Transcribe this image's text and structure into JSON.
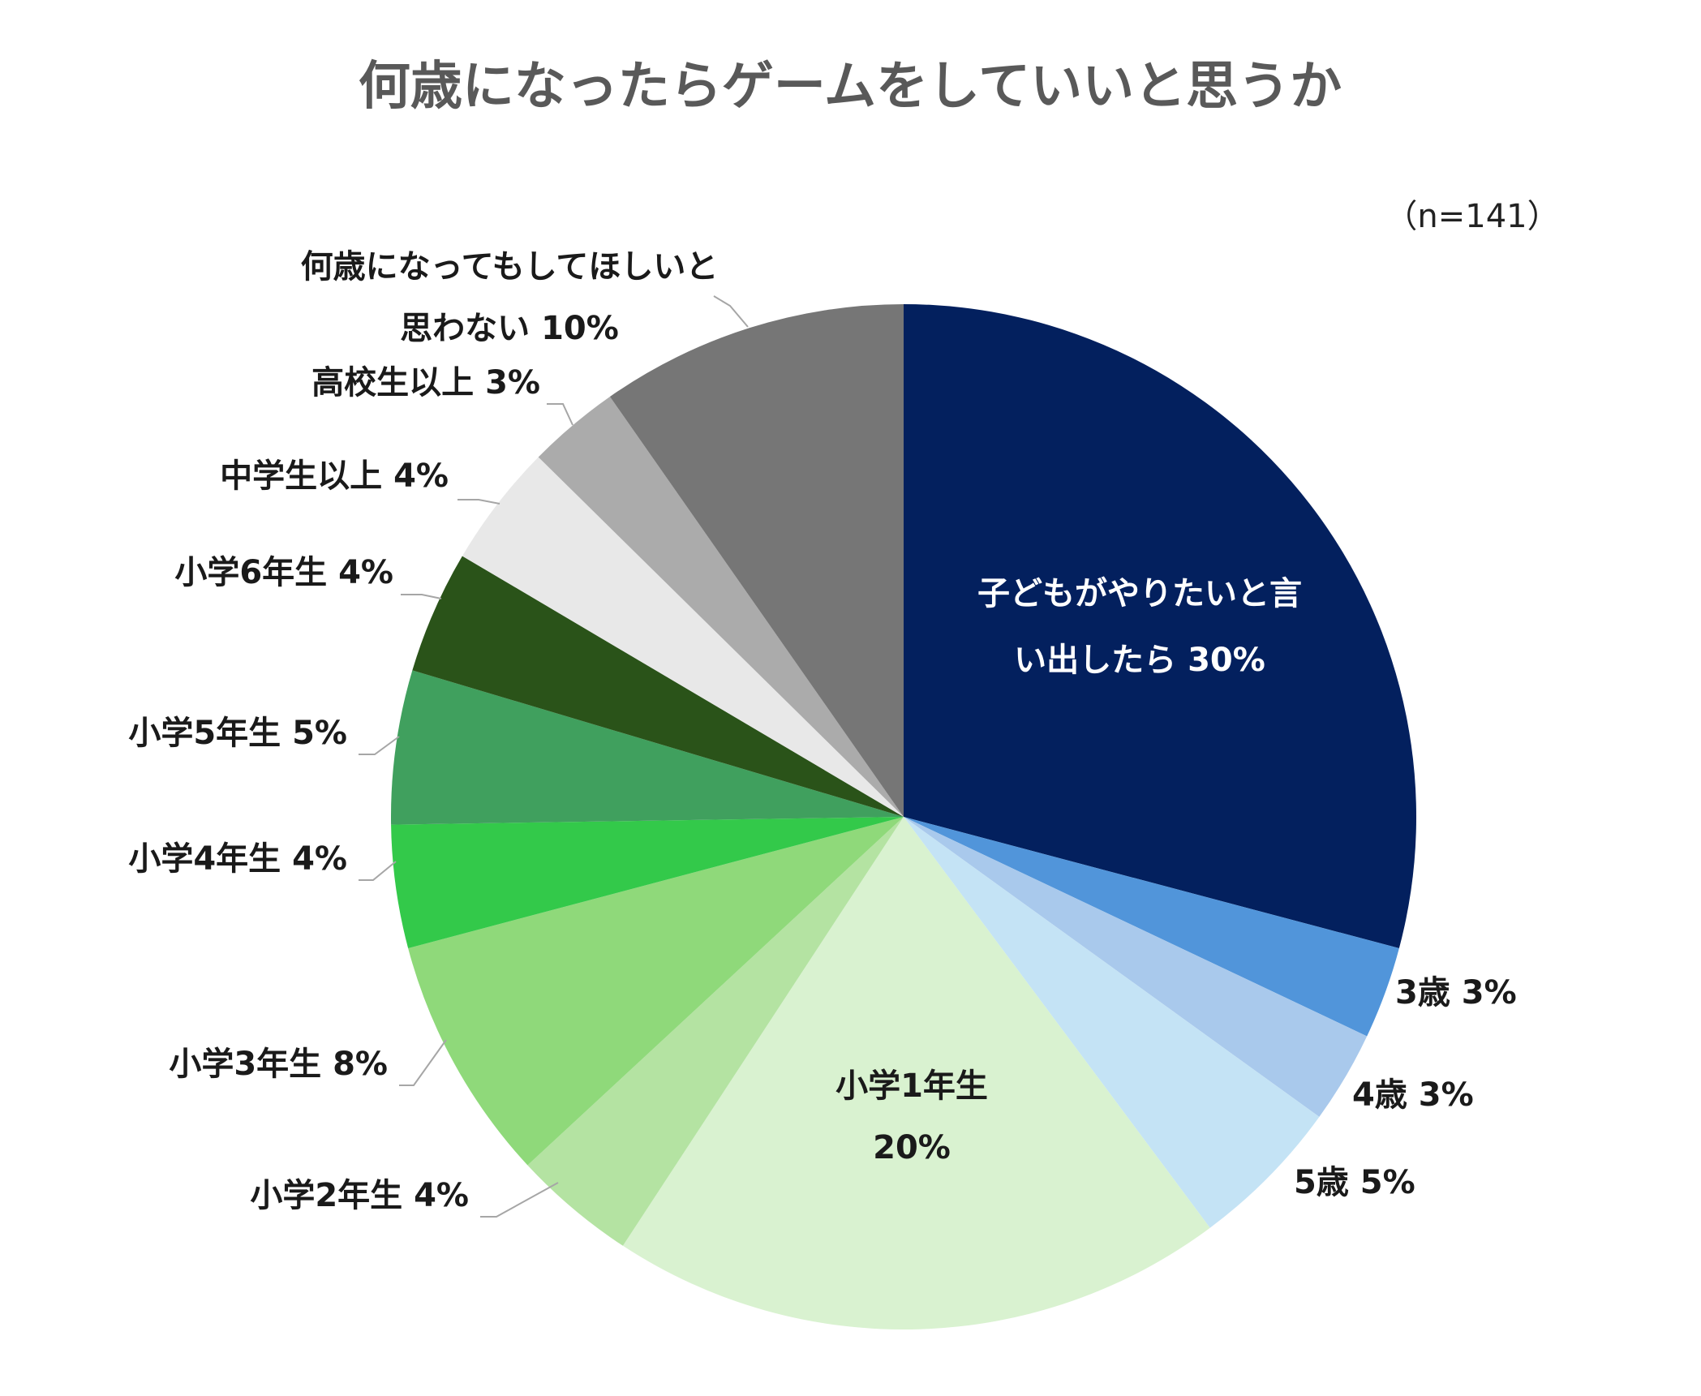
{
  "chart_data": {
    "type": "pie",
    "title": "何歳になったらゲームをしていいと思うか",
    "note": "（n=141）",
    "slices": [
      {
        "label_lines": [
          "子どもがやりたいと言",
          "い出したら 30%"
        ],
        "value": 30,
        "color": "#03205e",
        "label_color": "#ffffff"
      },
      {
        "label_lines": [
          "3歳 3%"
        ],
        "value": 3,
        "color": "#5195da",
        "label_color": "#1a1a1a"
      },
      {
        "label_lines": [
          "4歳 3%"
        ],
        "value": 3,
        "color": "#a9c9ec",
        "label_color": "#1a1a1a"
      },
      {
        "label_lines": [
          "5歳 5%"
        ],
        "value": 5,
        "color": "#c4e3f5",
        "label_color": "#1a1a1a"
      },
      {
        "label_lines": [
          "小学1年生",
          "20%"
        ],
        "value": 20,
        "color": "#d9f2d0",
        "label_color": "#1a1a1a"
      },
      {
        "label_lines": [
          "小学2年生 4%"
        ],
        "value": 4,
        "color": "#b4e3a2",
        "label_color": "#1a1a1a"
      },
      {
        "label_lines": [
          "小学3年生 8%"
        ],
        "value": 8,
        "color": "#8fd97a",
        "label_color": "#1a1a1a"
      },
      {
        "label_lines": [
          "小学4年生 4%"
        ],
        "value": 4,
        "color": "#33c94a",
        "label_color": "#1a1a1a"
      },
      {
        "label_lines": [
          "小学5年生 5%"
        ],
        "value": 5,
        "color": "#40a05e",
        "label_color": "#1a1a1a"
      },
      {
        "label_lines": [
          "小学6年生 4%"
        ],
        "value": 4,
        "color": "#2a5319",
        "label_color": "#1a1a1a"
      },
      {
        "label_lines": [
          "中学生以上 4%"
        ],
        "value": 4,
        "color": "#e8e8e8",
        "label_color": "#1a1a1a"
      },
      {
        "label_lines": [
          "高校生以上 3%"
        ],
        "value": 3,
        "color": "#ababab",
        "label_color": "#1a1a1a"
      },
      {
        "label_lines": [
          "何歳になってもしてほしいと",
          "思わない 10%"
        ],
        "value": 10,
        "color": "#767676",
        "label_color": "#1a1a1a"
      }
    ]
  }
}
